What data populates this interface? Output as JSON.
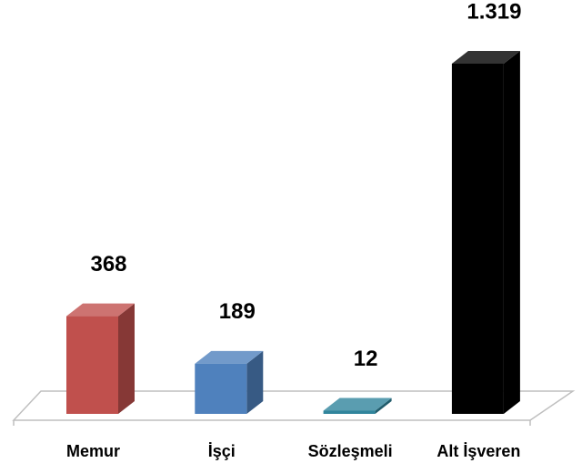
{
  "chart_data": {
    "type": "bar3d",
    "categories": [
      "Memur",
      "İşçi",
      "Sözleşmeli",
      "Alt İşveren"
    ],
    "values": [
      368,
      189,
      12,
      1319
    ],
    "value_labels": [
      "368",
      "189",
      "12",
      "1.319"
    ],
    "colors": [
      "#c0504d",
      "#4f81bd",
      "#31859c",
      "#000000"
    ]
  }
}
